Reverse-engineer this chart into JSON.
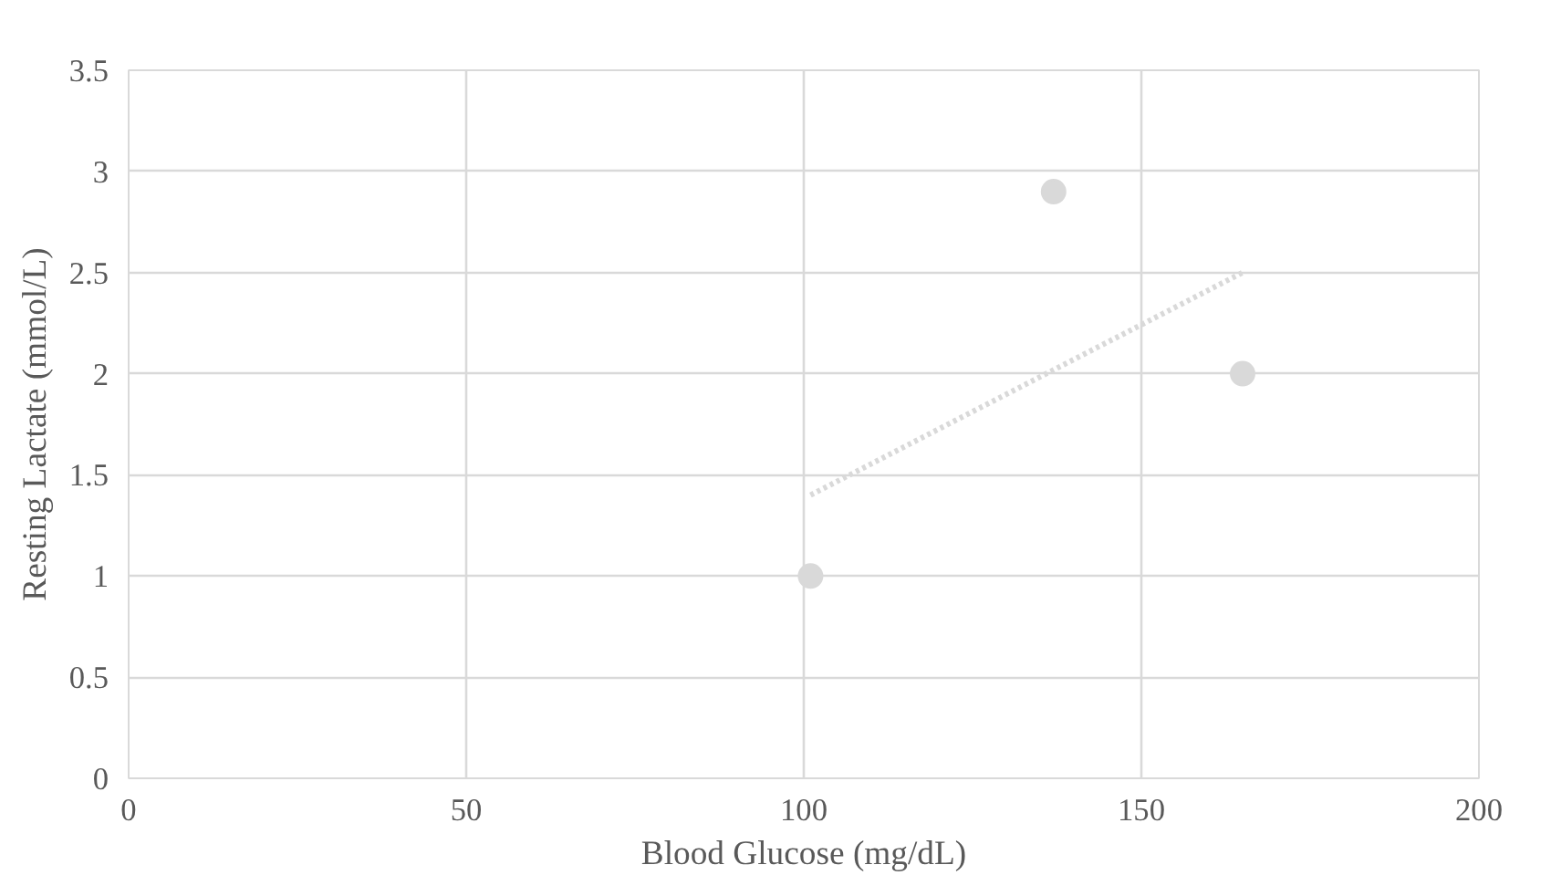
{
  "chart_data": {
    "type": "scatter",
    "xlabel": "Blood Glucose (mg/dL)",
    "ylabel": "Resting Lactate (mmol/L)",
    "series": [
      {
        "color": "#d9d9d9",
        "x": [
          101,
          137,
          165
        ],
        "values": [
          1,
          2.9,
          2
        ],
        "marker": "circle"
      },
      {
        "type": "line",
        "color": "#d9d9d9",
        "x": [
          101,
          165
        ],
        "values": [
          1.4,
          2.5
        ],
        "line_style": "dotted"
      }
    ],
    "xlim": [
      0,
      200
    ],
    "xticks": [
      0,
      50,
      100,
      150,
      200
    ],
    "ylim": [
      0,
      3.5
    ],
    "yticks": [
      0,
      0.5,
      1,
      1.5,
      2,
      2.5,
      3,
      3.5
    ],
    "grid": true
  }
}
